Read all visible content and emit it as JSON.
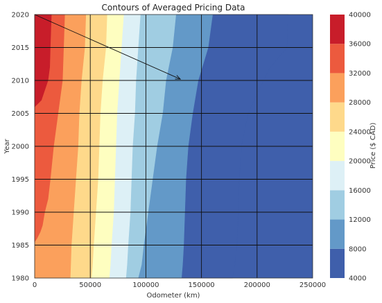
{
  "chart_data": {
    "type": "heatmap",
    "subtype": "filled-contour",
    "title": "Contours of Averaged Pricing Data",
    "xlabel": "Odometer (km)",
    "ylabel": "Year",
    "colorbar_label": "Price ($ CAD)",
    "xlim": [
      0,
      250000
    ],
    "ylim": [
      1980,
      2020
    ],
    "x_ticks": [
      0,
      50000,
      100000,
      150000,
      200000,
      250000
    ],
    "y_ticks": [
      1980,
      1985,
      1990,
      1995,
      2000,
      2005,
      2010,
      2015,
      2020
    ],
    "grid": true,
    "levels": [
      4000,
      8000,
      12000,
      16000,
      20000,
      24000,
      28000,
      32000,
      36000,
      40000
    ],
    "level_colors": [
      "#3f5fab",
      "#6399c8",
      "#a0cde2",
      "#ddf0f6",
      "#fefec0",
      "#fed98b",
      "#fba05c",
      "#ec5a3e",
      "#c81d2a"
    ],
    "boundaries": [
      {
        "upper_level": 36000,
        "points": [
          [
            15000,
            2020
          ],
          [
            14000,
            2015
          ],
          [
            13500,
            2012
          ],
          [
            12000,
            2010
          ],
          [
            10000,
            2009
          ],
          [
            6000,
            2007
          ],
          [
            0,
            2006
          ]
        ]
      },
      {
        "upper_level": 32000,
        "points": [
          [
            27000,
            2020
          ],
          [
            26000,
            2015
          ],
          [
            25000,
            2010
          ],
          [
            21000,
            2005
          ],
          [
            17000,
            2000
          ],
          [
            14000,
            1995
          ],
          [
            12000,
            1992
          ],
          [
            9000,
            1990
          ],
          [
            7000,
            1988
          ],
          [
            5000,
            1987
          ],
          [
            2000,
            1986
          ],
          [
            0,
            1985.5
          ]
        ]
      },
      {
        "upper_level": 28000,
        "points": [
          [
            46000,
            2020
          ],
          [
            45000,
            2015
          ],
          [
            42000,
            2010
          ],
          [
            40000,
            2005
          ],
          [
            39000,
            2000
          ],
          [
            37000,
            1995
          ],
          [
            35000,
            1990
          ],
          [
            33000,
            1985
          ],
          [
            32000,
            1980
          ]
        ]
      },
      {
        "upper_level": 24000,
        "points": [
          [
            65000,
            2020
          ],
          [
            64000,
            2015
          ],
          [
            61000,
            2010
          ],
          [
            59000,
            2005
          ],
          [
            58000,
            2000
          ],
          [
            57000,
            1995
          ],
          [
            55000,
            1990
          ],
          [
            53000,
            1985
          ],
          [
            52000,
            1982
          ],
          [
            51000,
            1980
          ]
        ]
      },
      {
        "upper_level": 20000,
        "points": [
          [
            80000,
            2020
          ],
          [
            78000,
            2015
          ],
          [
            76000,
            2010
          ],
          [
            74000,
            2005
          ],
          [
            73000,
            2000
          ],
          [
            72000,
            1995
          ],
          [
            71000,
            1990
          ],
          [
            69000,
            1985
          ],
          [
            68000,
            1982
          ],
          [
            67000,
            1980
          ]
        ]
      },
      {
        "upper_level": 16000,
        "points": [
          [
            95000,
            2020
          ],
          [
            93000,
            2015
          ],
          [
            91000,
            2010
          ],
          [
            90000,
            2005
          ],
          [
            88000,
            2000
          ],
          [
            87000,
            1995
          ],
          [
            86000,
            1990
          ],
          [
            84000,
            1985
          ],
          [
            83000,
            1982
          ],
          [
            82000,
            1980
          ]
        ]
      },
      {
        "upper_level": 12000,
        "points": [
          [
            127000,
            2020
          ],
          [
            124000,
            2015
          ],
          [
            118000,
            2010
          ],
          [
            115000,
            2005
          ],
          [
            110000,
            2000
          ],
          [
            106000,
            1995
          ],
          [
            102000,
            1990
          ],
          [
            98000,
            1985
          ],
          [
            96000,
            1982
          ],
          [
            93000,
            1980
          ]
        ]
      },
      {
        "upper_level": 8000,
        "points": [
          [
            160000,
            2020
          ],
          [
            156000,
            2015
          ],
          [
            147000,
            2010
          ],
          [
            142000,
            2005
          ],
          [
            138000,
            2000
          ],
          [
            136000,
            1995
          ],
          [
            135000,
            1990
          ],
          [
            134000,
            1985
          ],
          [
            133000,
            1982
          ],
          [
            132000,
            1980
          ]
        ]
      },
      {
        "upper_level": 4000,
        "points": [
          [
            228000,
            2020
          ],
          [
            227000,
            2015
          ],
          [
            212000,
            2012
          ],
          [
            200000,
            2008
          ],
          [
            192000,
            2005
          ],
          [
            186000,
            2000
          ],
          [
            184000,
            1995
          ],
          [
            183000,
            1990
          ],
          [
            182000,
            1985
          ],
          [
            180000,
            1982
          ],
          [
            178000,
            1980
          ]
        ]
      }
    ],
    "annotations": [
      {
        "type": "arrow",
        "from": [
          0,
          2020
        ],
        "to": [
          131000,
          2010.2
        ]
      }
    ]
  }
}
